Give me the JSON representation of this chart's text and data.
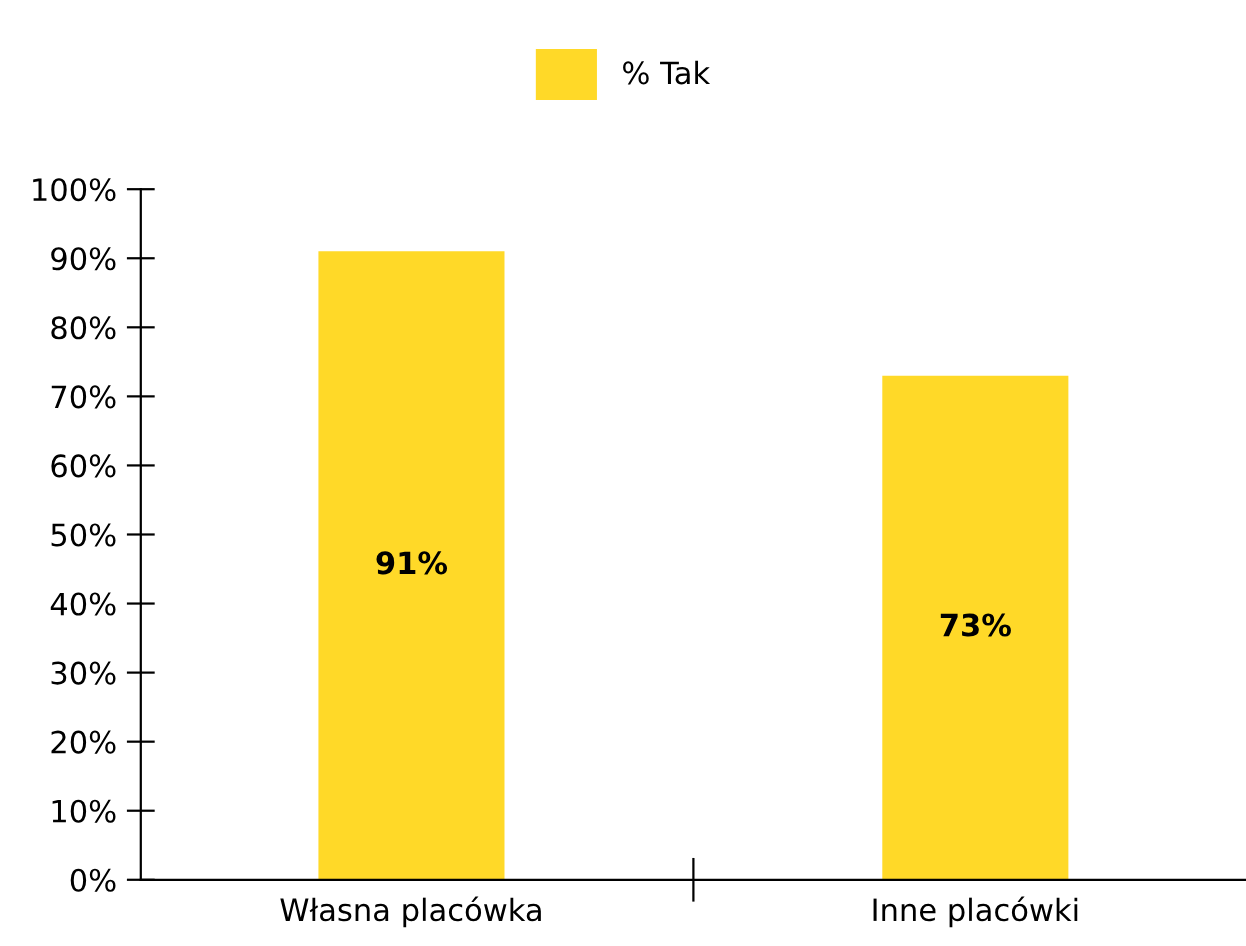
{
  "chart_data": {
    "type": "bar",
    "categories": [
      "Własna placówka",
      "Inne placówki"
    ],
    "series": [
      {
        "name": "% Tak",
        "color": "#ffd928",
        "values": [
          91,
          73
        ],
        "value_labels": [
          "91%",
          "73%"
        ]
      }
    ],
    "ylim": [
      0,
      100
    ],
    "yticks": [
      {
        "value": 0,
        "label": "0%"
      },
      {
        "value": 10,
        "label": "10%"
      },
      {
        "value": 20,
        "label": "20%"
      },
      {
        "value": 30,
        "label": "30%"
      },
      {
        "value": 40,
        "label": "40%"
      },
      {
        "value": 50,
        "label": "50%"
      },
      {
        "value": 60,
        "label": "60%"
      },
      {
        "value": 70,
        "label": "70%"
      },
      {
        "value": 80,
        "label": "80%"
      },
      {
        "value": 90,
        "label": "90%"
      },
      {
        "value": 100,
        "label": "100%"
      }
    ],
    "grid": false,
    "legend": "top"
  }
}
